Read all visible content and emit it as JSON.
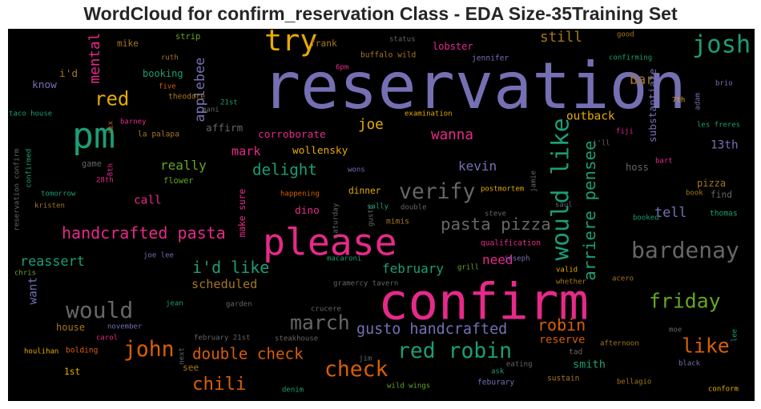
{
  "chart_data": {
    "type": "wordcloud",
    "title": "WordCloud for confirm_reservation Class - EDA Size-35Training Set",
    "colormap": "Dark2",
    "background": "#000000",
    "words": [
      {
        "text": "reservation",
        "weight": 1.0,
        "color": "#7570b3",
        "orientation": "horizontal"
      },
      {
        "text": "confirm",
        "weight": 0.78,
        "color": "#e7298a",
        "orientation": "horizontal"
      },
      {
        "text": "please",
        "weight": 0.58,
        "color": "#e7298a",
        "orientation": "horizontal"
      },
      {
        "text": "pm",
        "weight": 0.56,
        "color": "#1b9e77",
        "orientation": "horizontal"
      },
      {
        "text": "try",
        "weight": 0.46,
        "color": "#e6ab02",
        "orientation": "horizontal"
      },
      {
        "text": "josh",
        "weight": 0.38,
        "color": "#1b9e77",
        "orientation": "horizontal"
      },
      {
        "text": "would like",
        "weight": 0.37,
        "color": "#1b9e77",
        "orientation": "vertical"
      },
      {
        "text": "bardenay",
        "weight": 0.35,
        "color": "#666666",
        "orientation": "horizontal"
      },
      {
        "text": "would",
        "weight": 0.35,
        "color": "#666666",
        "orientation": "horizontal"
      },
      {
        "text": "verify",
        "weight": 0.33,
        "color": "#666666",
        "orientation": "horizontal"
      },
      {
        "text": "red robin",
        "weight": 0.33,
        "color": "#1b9e77",
        "orientation": "horizontal"
      },
      {
        "text": "check",
        "weight": 0.33,
        "color": "#d95f02",
        "orientation": "horizontal"
      },
      {
        "text": "john",
        "weight": 0.33,
        "color": "#d95f02",
        "orientation": "horizontal"
      },
      {
        "text": "march",
        "weight": 0.31,
        "color": "#666666",
        "orientation": "horizontal"
      },
      {
        "text": "friday",
        "weight": 0.31,
        "color": "#66a61e",
        "orientation": "horizontal"
      },
      {
        "text": "like",
        "weight": 0.31,
        "color": "#d95f02",
        "orientation": "horizontal"
      },
      {
        "text": "red",
        "weight": 0.3,
        "color": "#e6ab02",
        "orientation": "horizontal"
      },
      {
        "text": "chili",
        "weight": 0.28,
        "color": "#d95f02",
        "orientation": "horizontal"
      },
      {
        "text": "pasta pizza",
        "weight": 0.26,
        "color": "#666666",
        "orientation": "horizontal"
      },
      {
        "text": "arriere pensee",
        "weight": 0.26,
        "color": "#1b9e77",
        "orientation": "vertical"
      },
      {
        "text": "robin",
        "weight": 0.25,
        "color": "#d95f02",
        "orientation": "horizontal"
      },
      {
        "text": "handcrafted pasta",
        "weight": 0.25,
        "color": "#e7298a",
        "orientation": "horizontal"
      },
      {
        "text": "i'd like",
        "weight": 0.25,
        "color": "#1b9e77",
        "orientation": "horizontal"
      },
      {
        "text": "double check",
        "weight": 0.24,
        "color": "#d95f02",
        "orientation": "horizontal"
      },
      {
        "text": "delight",
        "weight": 0.24,
        "color": "#1b9e77",
        "orientation": "horizontal"
      },
      {
        "text": "gusto handcrafted",
        "weight": 0.23,
        "color": "#7570b3",
        "orientation": "horizontal"
      },
      {
        "text": "mental",
        "weight": 0.22,
        "color": "#e7298a",
        "orientation": "vertical"
      },
      {
        "text": "still",
        "weight": 0.22,
        "color": "#a6761d",
        "orientation": "horizontal"
      },
      {
        "text": "joe",
        "weight": 0.22,
        "color": "#e6ab02",
        "orientation": "horizontal"
      },
      {
        "text": "wanna",
        "weight": 0.22,
        "color": "#e7298a",
        "orientation": "horizontal"
      },
      {
        "text": "bar",
        "weight": 0.21,
        "color": "#a6761d",
        "orientation": "horizontal"
      },
      {
        "text": "applebee",
        "weight": 0.21,
        "color": "#7570b3",
        "orientation": "vertical"
      },
      {
        "text": "tell",
        "weight": 0.21,
        "color": "#7570b3",
        "orientation": "horizontal"
      },
      {
        "text": "reassert",
        "weight": 0.21,
        "color": "#1b9e77",
        "orientation": "horizontal"
      },
      {
        "text": "february",
        "weight": 0.2,
        "color": "#1b9e77",
        "orientation": "horizontal"
      },
      {
        "text": "need",
        "weight": 0.2,
        "color": "#e7298a",
        "orientation": "horizontal"
      },
      {
        "text": "really",
        "weight": 0.2,
        "color": "#66a61e",
        "orientation": "horizontal"
      },
      {
        "text": "kevin",
        "weight": 0.2,
        "color": "#7570b3",
        "orientation": "horizontal"
      },
      {
        "text": "mark",
        "weight": 0.19,
        "color": "#e7298a",
        "orientation": "horizontal"
      },
      {
        "text": "scheduled",
        "weight": 0.19,
        "color": "#a6761d",
        "orientation": "horizontal"
      },
      {
        "text": "want",
        "weight": 0.18,
        "color": "#7570b3",
        "orientation": "vertical"
      },
      {
        "text": "outback",
        "weight": 0.18,
        "color": "#e6ab02",
        "orientation": "horizontal"
      },
      {
        "text": "call",
        "weight": 0.18,
        "color": "#e7298a",
        "orientation": "horizontal"
      },
      {
        "text": "13th",
        "weight": 0.18,
        "color": "#7570b3",
        "orientation": "horizontal"
      },
      {
        "text": "reserve",
        "weight": 0.17,
        "color": "#d95f02",
        "orientation": "horizontal"
      },
      {
        "text": "smith",
        "weight": 0.17,
        "color": "#1b9e77",
        "orientation": "horizontal"
      },
      {
        "text": "substantiate",
        "weight": 0.16,
        "color": "#7570b3",
        "orientation": "vertical"
      },
      {
        "text": "corroborate",
        "weight": 0.16,
        "color": "#e7298a",
        "orientation": "horizontal"
      },
      {
        "text": "wollensky",
        "weight": 0.16,
        "color": "#e6ab02",
        "orientation": "horizontal"
      },
      {
        "text": "dino",
        "weight": 0.16,
        "color": "#e7298a",
        "orientation": "horizontal"
      },
      {
        "text": "affirm",
        "weight": 0.16,
        "color": "#666666",
        "orientation": "horizontal"
      },
      {
        "text": "know",
        "weight": 0.16,
        "color": "#7570b3",
        "orientation": "horizontal"
      },
      {
        "text": "i'd",
        "weight": 0.16,
        "color": "#a6761d",
        "orientation": "horizontal"
      },
      {
        "text": "house",
        "weight": 0.15,
        "color": "#a6761d",
        "orientation": "horizontal"
      },
      {
        "text": "pizza",
        "weight": 0.15,
        "color": "#a6761d",
        "orientation": "horizontal"
      },
      {
        "text": "hoss",
        "weight": 0.15,
        "color": "#666666",
        "orientation": "horizontal"
      },
      {
        "text": "lobster",
        "weight": 0.15,
        "color": "#e7298a",
        "orientation": "horizontal"
      },
      {
        "text": "booking",
        "weight": 0.15,
        "color": "#1b9e77",
        "orientation": "horizontal"
      },
      {
        "text": "mike",
        "weight": 0.14,
        "color": "#a6761d",
        "orientation": "horizontal"
      },
      {
        "text": "frank",
        "weight": 0.14,
        "color": "#a6761d",
        "orientation": "horizontal"
      },
      {
        "text": "find",
        "weight": 0.14,
        "color": "#666666",
        "orientation": "horizontal"
      },
      {
        "text": "dinner",
        "weight": 0.14,
        "color": "#e6ab02",
        "orientation": "horizontal"
      },
      {
        "text": "1st",
        "weight": 0.14,
        "color": "#e6ab02",
        "orientation": "horizontal"
      },
      {
        "text": "see",
        "weight": 0.14,
        "color": "#a6761d",
        "orientation": "horizontal"
      },
      {
        "text": "make sure",
        "weight": 0.14,
        "color": "#e7298a",
        "orientation": "vertical"
      },
      {
        "text": "game",
        "weight": 0.13,
        "color": "#666666",
        "orientation": "horizontal"
      },
      {
        "text": "flower",
        "weight": 0.13,
        "color": "#66a61e",
        "orientation": "horizontal"
      },
      {
        "text": "strip",
        "weight": 0.13,
        "color": "#66a61e",
        "orientation": "horizontal"
      },
      {
        "text": "thomas",
        "weight": 0.12,
        "color": "#1b9e77",
        "orientation": "horizontal"
      },
      {
        "text": "qualification",
        "weight": 0.12,
        "color": "#e7298a",
        "orientation": "horizontal"
      },
      {
        "text": "theodore",
        "weight": 0.12,
        "color": "#a6761d",
        "orientation": "horizontal"
      },
      {
        "text": "buffalo wild",
        "weight": 0.12,
        "color": "#a6761d",
        "orientation": "horizontal"
      },
      {
        "text": "jennifer",
        "weight": 0.12,
        "color": "#7570b3",
        "orientation": "horizontal"
      },
      {
        "text": "la palapa",
        "weight": 0.12,
        "color": "#a6761d",
        "orientation": "horizontal"
      },
      {
        "text": "mimis",
        "weight": 0.12,
        "color": "#a6761d",
        "orientation": "horizontal"
      },
      {
        "text": "tad",
        "weight": 0.12,
        "color": "#666666",
        "orientation": "horizontal"
      },
      {
        "text": "bolding",
        "weight": 0.12,
        "color": "#d95f02",
        "orientation": "horizontal"
      },
      {
        "text": "sustain",
        "weight": 0.12,
        "color": "#a6761d",
        "orientation": "horizontal"
      },
      {
        "text": "feburary",
        "weight": 0.12,
        "color": "#7570b3",
        "orientation": "horizontal"
      },
      {
        "text": "wild wings",
        "weight": 0.11,
        "color": "#66a61e",
        "orientation": "horizontal"
      },
      {
        "text": "bellagio",
        "weight": 0.11,
        "color": "#a6761d",
        "orientation": "horizontal"
      },
      {
        "text": "conform",
        "weight": 0.11,
        "color": "#e6ab02",
        "orientation": "horizontal"
      },
      {
        "text": "february 21st",
        "weight": 0.11,
        "color": "#666666",
        "orientation": "horizontal"
      },
      {
        "text": "joe lee",
        "weight": 0.11,
        "color": "#7570b3",
        "orientation": "horizontal"
      },
      {
        "text": "jean",
        "weight": 0.11,
        "color": "#1b9e77",
        "orientation": "horizontal"
      },
      {
        "text": "valid",
        "weight": 0.11,
        "color": "#e6ab02",
        "orientation": "horizontal"
      },
      {
        "text": "whether",
        "weight": 0.11,
        "color": "#a6761d",
        "orientation": "horizontal"
      },
      {
        "text": "ruth",
        "weight": 0.1,
        "color": "#a6761d",
        "orientation": "horizontal"
      },
      {
        "text": "five",
        "weight": 0.1,
        "color": "#d95f02",
        "orientation": "horizontal"
      },
      {
        "text": "taco house",
        "weight": 0.1,
        "color": "#1b9e77",
        "orientation": "horizontal"
      },
      {
        "text": "tomorrow",
        "weight": 0.1,
        "color": "#1b9e77",
        "orientation": "horizontal"
      },
      {
        "text": "kristen",
        "weight": 0.1,
        "color": "#a6761d",
        "orientation": "horizontal"
      },
      {
        "text": "wons",
        "weight": 0.1,
        "color": "#7570b3",
        "orientation": "horizontal"
      },
      {
        "text": "brio",
        "weight": 0.1,
        "color": "#7570b3",
        "orientation": "horizontal"
      },
      {
        "text": "les freres",
        "weight": 0.09,
        "color": "#1b9e77",
        "orientation": "horizontal"
      },
      {
        "text": "carol",
        "weight": 0.09,
        "color": "#e7298a",
        "orientation": "horizontal"
      },
      {
        "text": "houlihan",
        "weight": 0.09,
        "color": "#e6ab02",
        "orientation": "horizontal"
      },
      {
        "text": "confirmed",
        "weight": 0.09,
        "color": "#1b9e77",
        "orientation": "vertical"
      },
      {
        "text": "reservation confirm",
        "weight": 0.09,
        "color": "#666666",
        "orientation": "vertical"
      },
      {
        "text": "saturday",
        "weight": 0.09,
        "color": "#666666",
        "orientation": "vertical"
      },
      {
        "text": "gusto",
        "weight": 0.09,
        "color": "#666666",
        "orientation": "vertical"
      },
      {
        "text": "postmortem",
        "weight": 0.08,
        "color": "#e6ab02",
        "orientation": "horizontal"
      },
      {
        "text": "grill",
        "weight": 0.08,
        "color": "#66a61e",
        "orientation": "horizontal"
      },
      {
        "text": "joseph",
        "weight": 0.08,
        "color": "#7570b3",
        "orientation": "horizontal"
      },
      {
        "text": "acero",
        "weight": 0.08,
        "color": "#a6761d",
        "orientation": "horizontal"
      },
      {
        "text": "afternoon",
        "weight": 0.08,
        "color": "#a6761d",
        "orientation": "horizontal"
      },
      {
        "text": "black",
        "weight": 0.08,
        "color": "#7570b3",
        "orientation": "horizontal"
      },
      {
        "text": "booked",
        "weight": 0.08,
        "color": "#1b9e77",
        "orientation": "horizontal"
      },
      {
        "text": "book",
        "weight": 0.08,
        "color": "#a6761d",
        "orientation": "horizontal"
      },
      {
        "text": "bart",
        "weight": 0.08,
        "color": "#e7298a",
        "orientation": "horizontal"
      },
      {
        "text": "saul",
        "weight": 0.08,
        "color": "#666666",
        "orientation": "horizontal"
      },
      {
        "text": "steve",
        "weight": 0.08,
        "color": "#666666",
        "orientation": "horizontal"
      },
      {
        "text": "happening",
        "weight": 0.08,
        "color": "#d95f02",
        "orientation": "horizontal"
      },
      {
        "text": "sally",
        "weight": 0.08,
        "color": "#1b9e77",
        "orientation": "horizontal"
      },
      {
        "text": "double",
        "weight": 0.07,
        "color": "#666666",
        "orientation": "horizontal"
      },
      {
        "text": "macaroni",
        "weight": 0.08,
        "color": "#1b9e77",
        "orientation": "horizontal"
      },
      {
        "text": "gramercy tavern",
        "weight": 0.08,
        "color": "#666666",
        "orientation": "horizontal"
      },
      {
        "text": "crucere",
        "weight": 0.08,
        "color": "#666666",
        "orientation": "horizontal"
      },
      {
        "text": "garden",
        "weight": 0.07,
        "color": "#666666",
        "orientation": "horizontal"
      },
      {
        "text": "steakhouse",
        "weight": 0.08,
        "color": "#666666",
        "orientation": "horizontal"
      },
      {
        "text": "jim",
        "weight": 0.07,
        "color": "#666666",
        "orientation": "horizontal"
      },
      {
        "text": "eating",
        "weight": 0.07,
        "color": "#666666",
        "orientation": "horizontal"
      },
      {
        "text": "ask",
        "weight": 0.07,
        "color": "#1b9e77",
        "orientation": "horizontal"
      },
      {
        "text": "denim",
        "weight": 0.07,
        "color": "#1b9e77",
        "orientation": "horizontal"
      },
      {
        "text": "november",
        "weight": 0.07,
        "color": "#7570b3",
        "orientation": "horizontal"
      },
      {
        "text": "chris",
        "weight": 0.07,
        "color": "#66a61e",
        "orientation": "horizontal"
      },
      {
        "text": "moe",
        "weight": 0.07,
        "color": "#666666",
        "orientation": "horizontal"
      },
      {
        "text": "lee",
        "weight": 0.07,
        "color": "#1b9e77",
        "orientation": "vertical"
      },
      {
        "text": "status",
        "weight": 0.07,
        "color": "#666666",
        "orientation": "horizontal"
      },
      {
        "text": "6pm",
        "weight": 0.07,
        "color": "#e7298a",
        "orientation": "horizontal"
      },
      {
        "text": "good",
        "weight": 0.07,
        "color": "#a6761d",
        "orientation": "horizontal"
      },
      {
        "text": "confirming",
        "weight": 0.07,
        "color": "#1b9e77",
        "orientation": "horizontal"
      },
      {
        "text": "examination",
        "weight": 0.07,
        "color": "#e6ab02",
        "orientation": "horizontal"
      },
      {
        "text": "mani",
        "weight": 0.06,
        "color": "#666666",
        "orientation": "horizontal"
      },
      {
        "text": "21st",
        "weight": 0.06,
        "color": "#1b9e77",
        "orientation": "horizontal"
      },
      {
        "text": "barney",
        "weight": 0.06,
        "color": "#e7298a",
        "orientation": "horizontal"
      },
      {
        "text": "six",
        "weight": 0.06,
        "color": "#d95f02",
        "orientation": "vertical"
      },
      {
        "text": "7th",
        "weight": 0.07,
        "color": "#e6ab02",
        "orientation": "horizontal"
      },
      {
        "text": "adam",
        "weight": 0.06,
        "color": "#7570b3",
        "orientation": "vertical"
      },
      {
        "text": "fiji",
        "weight": 0.07,
        "color": "#e7298a",
        "orientation": "horizontal"
      },
      {
        "text": "i'll",
        "weight": 0.07,
        "color": "#666666",
        "orientation": "horizontal"
      },
      {
        "text": "jamie",
        "weight": 0.07,
        "color": "#666666",
        "orientation": "vertical"
      },
      {
        "text": "8th",
        "weight": 0.06,
        "color": "#e7298a",
        "orientation": "vertical"
      },
      {
        "text": "28th",
        "weight": 0.06,
        "color": "#e7298a",
        "orientation": "horizontal"
      },
      {
        "text": "next",
        "weight": 0.06,
        "color": "#666666",
        "orientation": "vertical"
      }
    ]
  }
}
